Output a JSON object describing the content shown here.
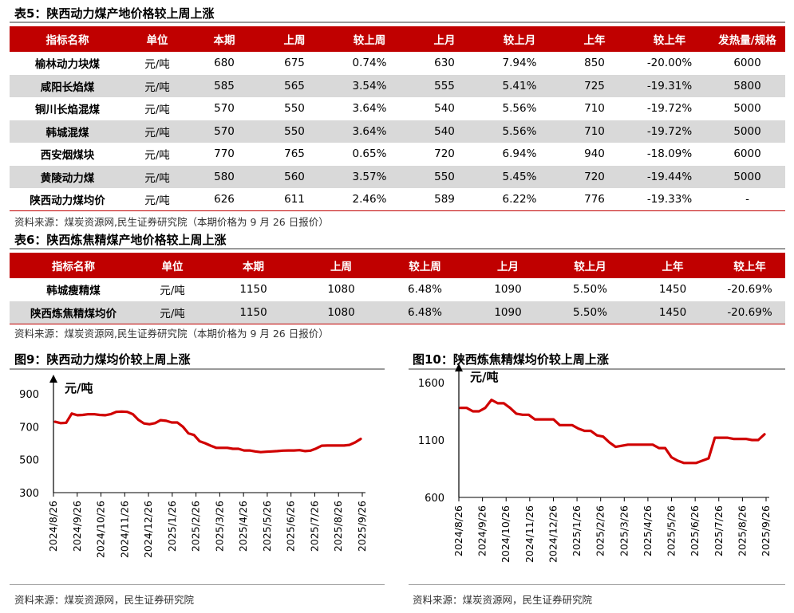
{
  "table5": {
    "caption": "表5：陕西动力煤产地价格较上周上涨",
    "headers": [
      "指标名称",
      "单位",
      "本期",
      "上周",
      "较上周",
      "上月",
      "较上月",
      "上年",
      "较上年",
      "发热量/规格"
    ],
    "rows": [
      [
        "榆林动力块煤",
        "元/吨",
        "680",
        "675",
        "0.74%",
        "630",
        "7.94%",
        "850",
        "-20.00%",
        "6000"
      ],
      [
        "咸阳长焰煤",
        "元/吨",
        "585",
        "565",
        "3.54%",
        "555",
        "5.41%",
        "725",
        "-19.31%",
        "5800"
      ],
      [
        "铜川长焰混煤",
        "元/吨",
        "570",
        "550",
        "3.64%",
        "540",
        "5.56%",
        "710",
        "-19.72%",
        "5000"
      ],
      [
        "韩城混煤",
        "元/吨",
        "570",
        "550",
        "3.64%",
        "540",
        "5.56%",
        "710",
        "-19.72%",
        "5000"
      ],
      [
        "西安烟煤块",
        "元/吨",
        "770",
        "765",
        "0.65%",
        "720",
        "6.94%",
        "940",
        "-18.09%",
        "6000"
      ],
      [
        "黄陵动力煤",
        "元/吨",
        "580",
        "560",
        "3.57%",
        "550",
        "5.45%",
        "720",
        "-19.44%",
        "5000"
      ],
      [
        "陕西动力煤均价",
        "元/吨",
        "626",
        "611",
        "2.46%",
        "589",
        "6.22%",
        "776",
        "-19.33%",
        "-"
      ]
    ],
    "source": "资料来源：煤炭资源网,民生证券研究院（本期价格为 9 月 26 日报价）"
  },
  "table6": {
    "caption": "表6：陕西炼焦精煤产地价格较上周上涨",
    "headers": [
      "指标名称",
      "单位",
      "本期",
      "上周",
      "较上周",
      "上月",
      "较上月",
      "上年",
      "较上年"
    ],
    "rows": [
      [
        "韩城瘦精煤",
        "元/吨",
        "1150",
        "1080",
        "6.48%",
        "1090",
        "5.50%",
        "1450",
        "-20.69%"
      ],
      [
        "陕西炼焦精煤均价",
        "元/吨",
        "1150",
        "1080",
        "6.48%",
        "1090",
        "5.50%",
        "1450",
        "-20.69%"
      ]
    ],
    "source": "资料来源：煤炭资源网,民生证券研究院（本期价格为 9 月 26 日报价）"
  },
  "colors": {
    "accent": "#c00000",
    "stripe": "#d9d9d9",
    "line": "#d00000"
  },
  "chart_data": [
    {
      "type": "line",
      "title": "图9：陕西动力煤均价较上周上涨",
      "ylabel": "元/吨",
      "ylim": [
        300,
        900
      ],
      "yticks": [
        300,
        500,
        700,
        900
      ],
      "xticks": [
        "2024/8/26",
        "2024/9/26",
        "2024/10/26",
        "2024/11/26",
        "2024/12/26",
        "2025/1/26",
        "2025/2/26",
        "2025/3/26",
        "2025/4/26",
        "2025/5/26",
        "2025/6/26",
        "2025/7/26",
        "2025/8/26",
        "2025/9/26"
      ],
      "grid": false,
      "series": [
        {
          "values": [
            730,
            722,
            724,
            780,
            770,
            772,
            776,
            776,
            772,
            770,
            776,
            790,
            792,
            790,
            776,
            742,
            720,
            715,
            722,
            740,
            736,
            726,
            726,
            700,
            660,
            650,
            612,
            600,
            585,
            572,
            572,
            572,
            566,
            566,
            556,
            556,
            550,
            546,
            548,
            550,
            552,
            555,
            556,
            556,
            558,
            552,
            555,
            568,
            585,
            586,
            586,
            586,
            586,
            590,
            605,
            626
          ]
        }
      ],
      "source": "资料来源：煤炭资源网，民生证券研究院"
    },
    {
      "type": "line",
      "title": "图10：陕西炼焦精煤均价较上周上涨",
      "ylabel": "元/吨",
      "ylim": [
        600,
        1600
      ],
      "yticks": [
        600,
        1100,
        1600
      ],
      "xticks": [
        "2024/8/26",
        "2024/9/26",
        "2024/10/26",
        "2024/11/26",
        "2024/12/26",
        "2025/1/26",
        "2025/2/26",
        "2025/3/26",
        "2025/4/26",
        "2025/5/26",
        "2025/6/26",
        "2025/7/26",
        "2025/8/26",
        "2025/9/26"
      ],
      "grid": false,
      "series": [
        {
          "values": [
            1380,
            1380,
            1350,
            1350,
            1380,
            1450,
            1420,
            1420,
            1380,
            1330,
            1320,
            1320,
            1280,
            1280,
            1280,
            1280,
            1230,
            1230,
            1230,
            1200,
            1180,
            1180,
            1140,
            1130,
            1080,
            1040,
            1050,
            1060,
            1060,
            1060,
            1060,
            1060,
            1030,
            1030,
            950,
            920,
            900,
            900,
            900,
            920,
            940,
            1120,
            1120,
            1120,
            1110,
            1110,
            1110,
            1100,
            1100,
            1150
          ]
        }
      ],
      "source": "资料来源：煤炭资源网，民生证券研究院"
    }
  ]
}
